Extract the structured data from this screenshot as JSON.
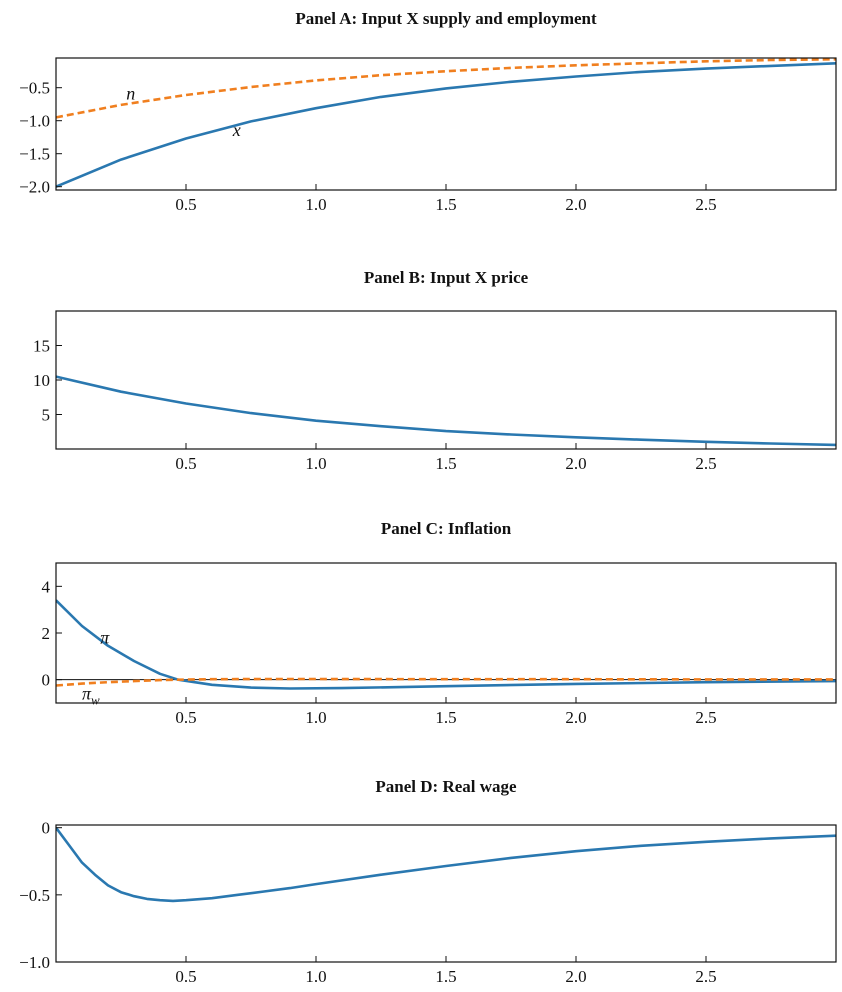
{
  "chart_data": [
    {
      "type": "line",
      "title": "Panel A: Input X supply and employment",
      "xlim": [
        0,
        3
      ],
      "ylim": [
        -2.05,
        -0.05
      ],
      "xticks": [
        "0.5",
        "1.0",
        "1.5",
        "2.0",
        "2.5"
      ],
      "yticks": [
        "−0.5",
        "−1.0",
        "−1.5",
        "−2.0"
      ],
      "series": [
        {
          "name": "x",
          "color": "#2a78b0",
          "style": "solid",
          "x": [
            0,
            0.25,
            0.5,
            0.75,
            1.0,
            1.25,
            1.5,
            1.75,
            2.0,
            2.25,
            2.5,
            2.75,
            3.0
          ],
          "y": [
            -2.0,
            -1.59,
            -1.27,
            -1.01,
            -0.81,
            -0.64,
            -0.51,
            -0.41,
            -0.33,
            -0.26,
            -0.21,
            -0.17,
            -0.13
          ]
        },
        {
          "name": "n",
          "color": "#f07f1f",
          "style": "dashed",
          "x": [
            0,
            0.25,
            0.5,
            0.75,
            1.0,
            1.25,
            1.5,
            1.75,
            2.0,
            2.25,
            2.5,
            2.75,
            3.0
          ],
          "y": [
            -0.95,
            -0.76,
            -0.61,
            -0.49,
            -0.39,
            -0.31,
            -0.25,
            -0.2,
            -0.16,
            -0.13,
            -0.1,
            -0.08,
            -0.07
          ]
        }
      ]
    },
    {
      "type": "line",
      "title": "Panel B: Input X price",
      "xlim": [
        0,
        3
      ],
      "ylim": [
        0,
        20
      ],
      "xticks": [
        "0.5",
        "1.0",
        "1.5",
        "2.0",
        "2.5"
      ],
      "yticks": [
        "15",
        "10",
        "5"
      ],
      "series": [
        {
          "name": "",
          "color": "#2a78b0",
          "style": "solid",
          "x": [
            0,
            0.25,
            0.5,
            0.75,
            1.0,
            1.25,
            1.5,
            1.75,
            2.0,
            2.25,
            2.5,
            2.75,
            3.0
          ],
          "y": [
            10.5,
            8.3,
            6.6,
            5.2,
            4.1,
            3.3,
            2.6,
            2.1,
            1.7,
            1.35,
            1.05,
            0.8,
            0.6
          ]
        }
      ]
    },
    {
      "type": "line",
      "title": "Panel C: Inflation",
      "xlim": [
        0,
        3
      ],
      "ylim": [
        -1,
        5
      ],
      "xticks": [
        "0.5",
        "1.0",
        "1.5",
        "2.0",
        "2.5"
      ],
      "yticks": [
        "4",
        "2",
        "0"
      ],
      "series": [
        {
          "name": "π",
          "color": "#2a78b0",
          "style": "solid",
          "x": [
            0,
            0.1,
            0.2,
            0.3,
            0.4,
            0.47,
            0.6,
            0.75,
            0.9,
            1.1,
            1.5,
            2.0,
            2.5,
            3.0
          ],
          "y": [
            3.4,
            2.3,
            1.45,
            0.8,
            0.25,
            0.0,
            -0.22,
            -0.34,
            -0.38,
            -0.36,
            -0.28,
            -0.18,
            -0.11,
            -0.06
          ]
        },
        {
          "name": "πw",
          "color": "#f07f1f",
          "style": "dashed",
          "x": [
            0,
            0.1,
            0.2,
            0.3,
            0.4,
            0.47,
            0.6,
            0.8,
            1.0,
            1.5,
            2.0,
            2.5,
            3.0
          ],
          "y": [
            -0.25,
            -0.17,
            -0.11,
            -0.06,
            -0.02,
            0.0,
            0.02,
            0.03,
            0.03,
            0.02,
            0.02,
            0.01,
            0.01
          ]
        }
      ]
    },
    {
      "type": "line",
      "title": "Panel D: Real wage",
      "xlim": [
        0,
        3
      ],
      "ylim": [
        -1.0,
        0.02
      ],
      "xticks": [
        "0.5",
        "1.0",
        "1.5",
        "2.0",
        "2.5"
      ],
      "yticks": [
        "0",
        "−0.5",
        "−1.0"
      ],
      "series": [
        {
          "name": "",
          "color": "#2a78b0",
          "style": "solid",
          "x": [
            0,
            0.05,
            0.1,
            0.15,
            0.2,
            0.25,
            0.3,
            0.35,
            0.4,
            0.45,
            0.5,
            0.6,
            0.7,
            0.8,
            0.9,
            1.0,
            1.25,
            1.5,
            1.75,
            2.0,
            2.25,
            2.5,
            2.75,
            3.0
          ],
          "y": [
            0.0,
            -0.13,
            -0.26,
            -0.35,
            -0.43,
            -0.48,
            -0.51,
            -0.53,
            -0.54,
            -0.545,
            -0.54,
            -0.525,
            -0.5,
            -0.475,
            -0.45,
            -0.42,
            -0.35,
            -0.285,
            -0.225,
            -0.175,
            -0.135,
            -0.105,
            -0.08,
            -0.06
          ]
        }
      ]
    }
  ]
}
